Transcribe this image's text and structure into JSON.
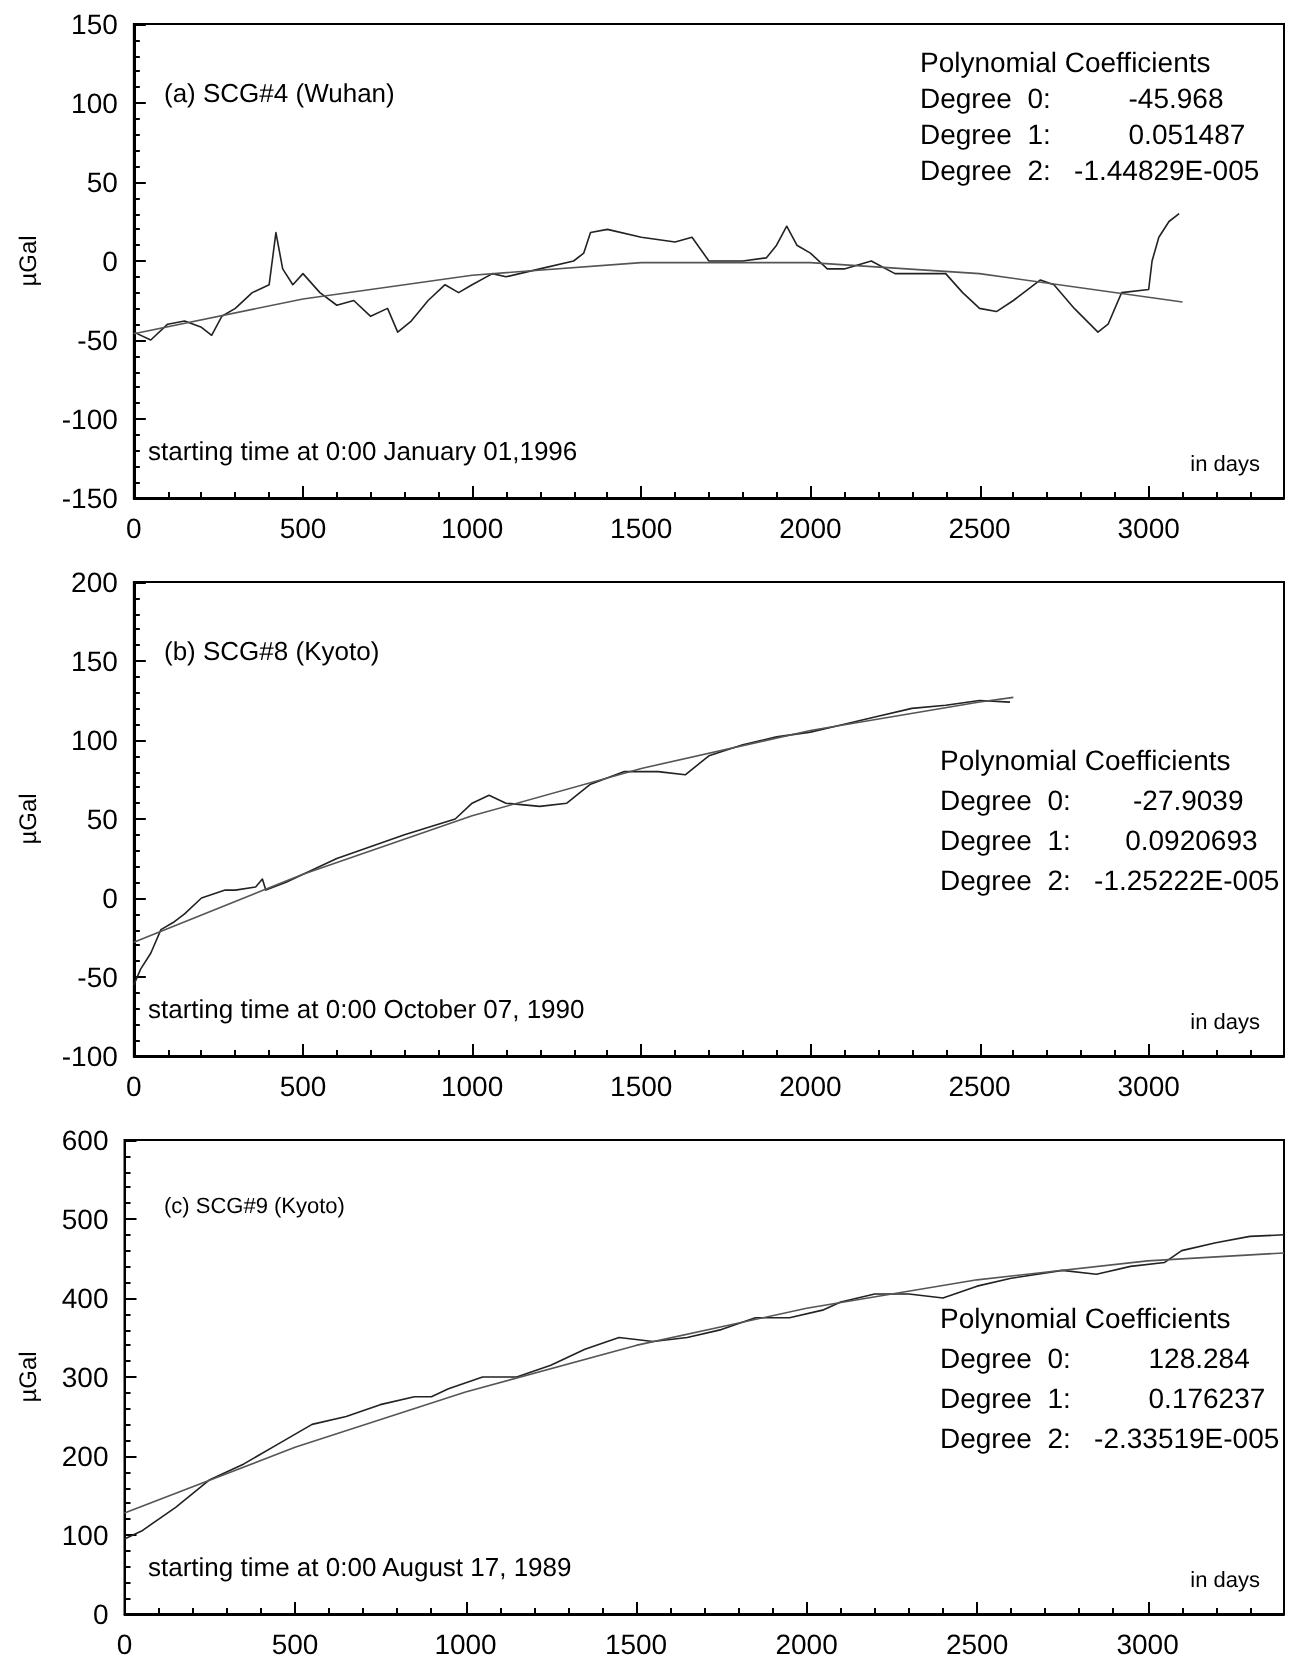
{
  "chart_data": [
    {
      "type": "line",
      "ylabel": "µGal",
      "xlim": [
        0,
        3400
      ],
      "xticks": [
        0,
        500,
        1000,
        1500,
        2000,
        2500,
        3000
      ],
      "ylim": [
        -150,
        150
      ],
      "yticks": [
        -150,
        -100,
        -50,
        0,
        50,
        100,
        150
      ],
      "grid": false,
      "marker": "none",
      "annotations": [
        "(a) SCG#4 (Wuhan)",
        "starting time at 0:00 January 01,1996",
        "in days",
        "Polynomial Coefficients",
        "Degree  0:          -45.968",
        "Degree  1:          0.051487",
        "Degree  2:   -1.44829E-005"
      ],
      "series": [
        {
          "color": "#222222",
          "x": [
            0,
            50,
            100,
            150,
            200,
            230,
            260,
            300,
            350,
            400,
            420,
            440,
            470,
            500,
            550,
            600,
            650,
            700,
            750,
            780,
            820,
            870,
            920,
            960,
            1000,
            1060,
            1100,
            1200,
            1300,
            1330,
            1350,
            1400,
            1500,
            1600,
            1650,
            1700,
            1800,
            1870,
            1900,
            1930,
            1960,
            2000,
            2050,
            2100,
            2180,
            2250,
            2350,
            2400,
            2450,
            2500,
            2550,
            2600,
            2680,
            2720,
            2780,
            2850,
            2880,
            2920,
            3000,
            3010,
            3030,
            3060,
            3090
          ],
          "values": [
            -45,
            -50,
            -40,
            -38,
            -42,
            -47,
            -35,
            -30,
            -20,
            -15,
            18,
            -5,
            -15,
            -8,
            -20,
            -28,
            -25,
            -35,
            -30,
            -45,
            -38,
            -25,
            -15,
            -20,
            -15,
            -8,
            -10,
            -5,
            0,
            5,
            18,
            20,
            15,
            12,
            15,
            0,
            0,
            2,
            10,
            22,
            10,
            5,
            -5,
            -5,
            0,
            -8,
            -8,
            -8,
            -20,
            -30,
            -32,
            -25,
            -12,
            -15,
            -30,
            -45,
            -40,
            -20,
            -18,
            0,
            15,
            25,
            30
          ]
        },
        {
          "color": "#555555",
          "x": [
            0,
            500,
            1000,
            1500,
            2000,
            2500,
            3100
          ],
          "values": [
            -46,
            -24,
            -9,
            -1,
            -1,
            -8,
            -26
          ]
        }
      ]
    },
    {
      "type": "line",
      "ylabel": "µGal",
      "xlim": [
        0,
        3400
      ],
      "xticks": [
        0,
        500,
        1000,
        1500,
        2000,
        2500,
        3000
      ],
      "ylim": [
        -100,
        200
      ],
      "yticks": [
        -100,
        -50,
        0,
        50,
        100,
        150,
        200
      ],
      "grid": false,
      "marker": "none",
      "annotations": [
        "(b) SCG#8 (Kyoto)",
        "starting time at 0:00 October 07, 1990",
        "in days",
        "Polynomial Coefficients",
        "Degree  0:        -27.9039",
        "Degree  1:       0.0920693",
        "Degree  2:   -1.25222E-005"
      ],
      "series": [
        {
          "color": "#222222",
          "x": [
            0,
            20,
            50,
            80,
            120,
            150,
            200,
            270,
            300,
            360,
            380,
            390,
            450,
            600,
            800,
            950,
            1000,
            1050,
            1100,
            1200,
            1280,
            1350,
            1450,
            1550,
            1630,
            1700,
            1800,
            1900,
            2000,
            2100,
            2200,
            2300,
            2400,
            2500,
            2590
          ],
          "values": [
            -55,
            -45,
            -35,
            -20,
            -15,
            -10,
            0,
            5,
            5,
            7,
            12,
            5,
            10,
            25,
            40,
            50,
            60,
            65,
            60,
            58,
            60,
            72,
            80,
            80,
            78,
            90,
            97,
            102,
            105,
            110,
            115,
            120,
            122,
            125,
            124
          ]
        },
        {
          "color": "#555555",
          "x": [
            0,
            500,
            1000,
            1500,
            2000,
            2500,
            2600
          ],
          "values": [
            -28,
            15,
            52,
            82,
            106,
            124,
            127
          ]
        }
      ]
    },
    {
      "type": "line",
      "ylabel": "µGal",
      "xlim": [
        0,
        3400
      ],
      "xticks": [
        0,
        500,
        1000,
        1500,
        2000,
        2500,
        3000
      ],
      "ylim": [
        0,
        600
      ],
      "yticks": [
        0,
        100,
        200,
        300,
        400,
        500,
        600
      ],
      "grid": false,
      "marker": "none",
      "annotations": [
        "(c) SCG#9 (Kyoto)",
        "starting time at 0:00 August 17, 1989",
        "in days",
        "Polynomial Coefficients",
        "Degree  0:          128.284",
        "Degree  1:          0.176237",
        "Degree  2:   -2.33519E-005"
      ],
      "series": [
        {
          "color": "#222222",
          "x": [
            0,
            50,
            150,
            250,
            350,
            450,
            550,
            650,
            750,
            850,
            900,
            950,
            1050,
            1150,
            1250,
            1350,
            1450,
            1550,
            1650,
            1750,
            1850,
            1950,
            2050,
            2100,
            2200,
            2300,
            2400,
            2500,
            2600,
            2750,
            2850,
            2950,
            3050,
            3100,
            3200,
            3300,
            3400
          ],
          "values": [
            95,
            105,
            135,
            170,
            190,
            215,
            240,
            250,
            265,
            275,
            275,
            285,
            300,
            300,
            315,
            335,
            350,
            345,
            350,
            360,
            375,
            375,
            385,
            395,
            405,
            405,
            400,
            415,
            425,
            435,
            430,
            440,
            445,
            460,
            470,
            478,
            480
          ]
        },
        {
          "color": "#555555",
          "x": [
            0,
            500,
            1000,
            1500,
            2000,
            2500,
            3000,
            3400
          ],
          "values": [
            128,
            211,
            281,
            340,
            387,
            423,
            447,
            457
          ]
        }
      ]
    }
  ]
}
